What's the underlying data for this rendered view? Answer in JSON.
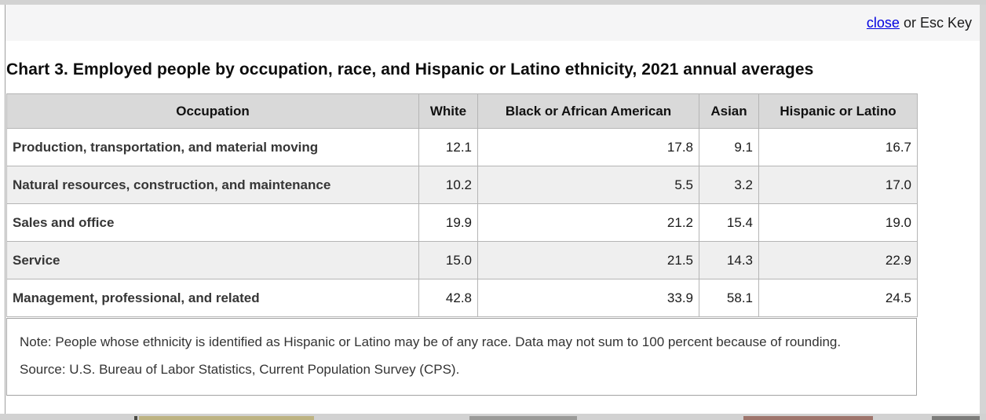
{
  "modal": {
    "close_label": "close",
    "close_suffix": " or Esc Key"
  },
  "title": "Chart 3. Employed people by occupation, race, and Hispanic or Latino ethnicity, 2021 annual averages",
  "chart_data": {
    "type": "table",
    "title": "Chart 3. Employed people by occupation, race, and Hispanic or Latino ethnicity, 2021 annual averages",
    "columns": [
      "Occupation",
      "White",
      "Black or African American",
      "Asian",
      "Hispanic or Latino"
    ],
    "rows": [
      {
        "occupation": "Production, transportation, and material moving",
        "values": [
          12.1,
          17.8,
          9.1,
          16.7
        ]
      },
      {
        "occupation": "Natural resources, construction, and maintenance",
        "values": [
          10.2,
          5.5,
          3.2,
          17.0
        ]
      },
      {
        "occupation": "Sales and office",
        "values": [
          19.9,
          21.2,
          15.4,
          19.0
        ]
      },
      {
        "occupation": "Service",
        "values": [
          15.0,
          21.5,
          14.3,
          22.9
        ]
      },
      {
        "occupation": "Management, professional, and related",
        "values": [
          42.8,
          33.9,
          58.1,
          24.5
        ]
      }
    ]
  },
  "note": "Note: People whose ethnicity is identified as Hispanic or Latino may be of any race. Data may not sum to 100 percent because of rounding.",
  "source": "Source: U.S. Bureau of Labor Statistics, Current Population Survey (CPS).",
  "colors": {
    "link_blue": "#0000e0",
    "header_bg": "#d9d9d9",
    "alt_row_bg": "#efefef"
  }
}
